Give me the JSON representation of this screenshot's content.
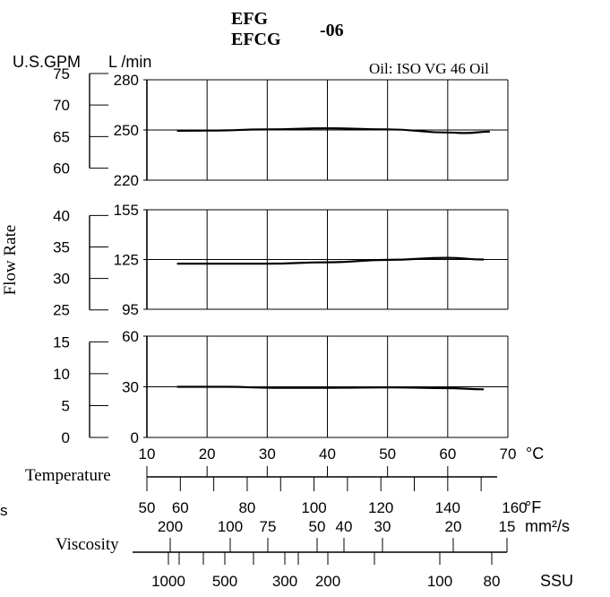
{
  "title": {
    "line1": "EFG",
    "line2": "EFCG",
    "suffix": "-06"
  },
  "oil_label": "Oil: ISO VG 46 Oil",
  "units": {
    "gpm": "U.S.GPM",
    "lpm": "L /min",
    "celsius": "°C",
    "fahrenheit": "°F",
    "mm2s": "mm²/s",
    "ssu": "SSU"
  },
  "labels": {
    "flow_rate": "Flow Rate",
    "temperature": "Temperature",
    "viscosity": "Viscosity",
    "cut_s": "s"
  },
  "chart_data": {
    "type": "line",
    "xlabel": "Temperature",
    "xunit": "°C",
    "xlim": [
      10,
      70
    ],
    "x_ticks": [
      10,
      20,
      30,
      40,
      50,
      60,
      70
    ],
    "grid": true,
    "panels": [
      {
        "lpm_ticks": [
          280,
          250,
          220
        ],
        "lpm_range": [
          220,
          280
        ],
        "gpm_ticks": [
          75,
          70,
          65,
          60
        ],
        "gpm_range": [
          58.1,
          74.0
        ],
        "series": [
          {
            "x": [
              15,
              20,
              30,
              40,
              50,
              60,
              63,
              67
            ],
            "y": [
              249.5,
              249.6,
              250.3,
              251.0,
              250.4,
              248.5,
              248.2,
              249.0
            ]
          }
        ]
      },
      {
        "lpm_ticks": [
          155,
          125,
          95
        ],
        "lpm_range": [
          95,
          155
        ],
        "gpm_ticks": [
          40,
          35,
          30,
          25
        ],
        "gpm_range": [
          25.1,
          40.9
        ],
        "series": [
          {
            "x": [
              15,
              30,
              40,
              50,
              60,
              66
            ],
            "y": [
              122.5,
              122.5,
              123.3,
              124.8,
              126.0,
              125.0
            ]
          }
        ]
      },
      {
        "lpm_ticks": [
          60,
          30,
          0
        ],
        "lpm_range": [
          0,
          60
        ],
        "gpm_ticks": [
          15,
          10,
          5,
          0
        ],
        "gpm_range": [
          0,
          15.9
        ],
        "series": [
          {
            "x": [
              15,
              23,
              31,
              40,
              50,
              60,
              66
            ],
            "y": [
              30.0,
              30.0,
              29.4,
              29.4,
              29.7,
              29.2,
              28.5
            ]
          }
        ]
      }
    ],
    "fahrenheit_scale": {
      "labels": [
        50,
        60,
        80,
        100,
        120,
        140,
        160
      ]
    },
    "viscosity_mm2s_scale": {
      "labels": [
        200,
        100,
        75,
        50,
        40,
        30,
        20,
        15
      ]
    },
    "viscosity_ssu_scale": {
      "labels": [
        1000,
        500,
        300,
        200,
        100,
        80
      ]
    }
  }
}
